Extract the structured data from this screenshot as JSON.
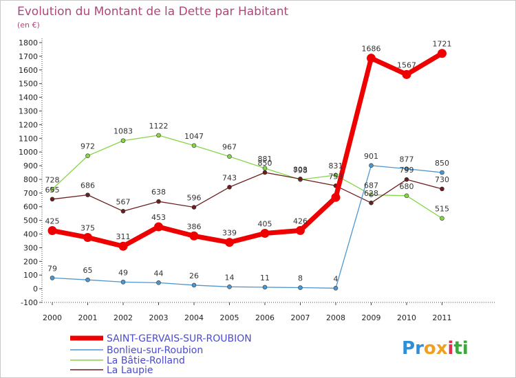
{
  "chart_data": {
    "type": "line",
    "title": "Evolution du Montant de la Dette par Habitant",
    "subtitle": "(en €)",
    "categories": [
      "2000",
      "2001",
      "2002",
      "2003",
      "2004",
      "2005",
      "2006",
      "2007",
      "2008",
      "2009",
      "2010",
      "2011"
    ],
    "ylim": [
      -100,
      1800
    ],
    "yticks": [
      -100,
      0,
      100,
      200,
      300,
      400,
      500,
      600,
      700,
      800,
      900,
      1000,
      1100,
      1200,
      1300,
      1400,
      1500,
      1600,
      1700,
      1800
    ],
    "grid": false,
    "legend_placement": "bottom-left",
    "series": [
      {
        "name": "SAINT-GERVAIS-SUR-ROUBION",
        "color": "#ee0000",
        "values": [
          425,
          375,
          311,
          453,
          386,
          339,
          405,
          426,
          668,
          1686,
          1567,
          1721
        ],
        "labels": [
          "425",
          "375",
          "311",
          "453",
          "386",
          "339",
          "405",
          "426",
          "",
          "1686",
          "1567",
          "1721"
        ]
      },
      {
        "name": "Bonlieu-sur-Roubion",
        "color": "#4e96cf",
        "values": [
          79,
          65,
          49,
          44,
          26,
          14,
          11,
          8,
          4,
          901,
          877,
          850
        ],
        "labels": [
          "79",
          "65",
          "49",
          "44",
          "26",
          "14",
          "11",
          "8",
          "4",
          "901",
          "877",
          "850"
        ]
      },
      {
        "name": "La Bâtie-Rolland",
        "color": "#88d448",
        "values": [
          728,
          972,
          1083,
          1122,
          1047,
          967,
          881,
          798,
          831,
          687,
          680,
          515
        ],
        "labels": [
          "728",
          "972",
          "1083",
          "1122",
          "1047",
          "967",
          "881",
          "798",
          "831",
          "687",
          "680",
          "515"
        ]
      },
      {
        "name": "La Laupie",
        "color": "#6b1e1e",
        "values": [
          655,
          686,
          567,
          638,
          596,
          743,
          850,
          803,
          753,
          628,
          799,
          730
        ],
        "labels": [
          "655",
          "686",
          "567",
          "638",
          "596",
          "743",
          "850",
          "803",
          "753",
          "628",
          "799",
          "730"
        ]
      }
    ]
  },
  "brand": {
    "letters": [
      "P",
      "r",
      "o",
      "x",
      "i",
      "t",
      "i"
    ],
    "colors": [
      "#2d8fd8",
      "#2d8fd8",
      "#f0a020",
      "#f0a020",
      "#e03050",
      "#3aa83a",
      "#3aa83a"
    ]
  }
}
